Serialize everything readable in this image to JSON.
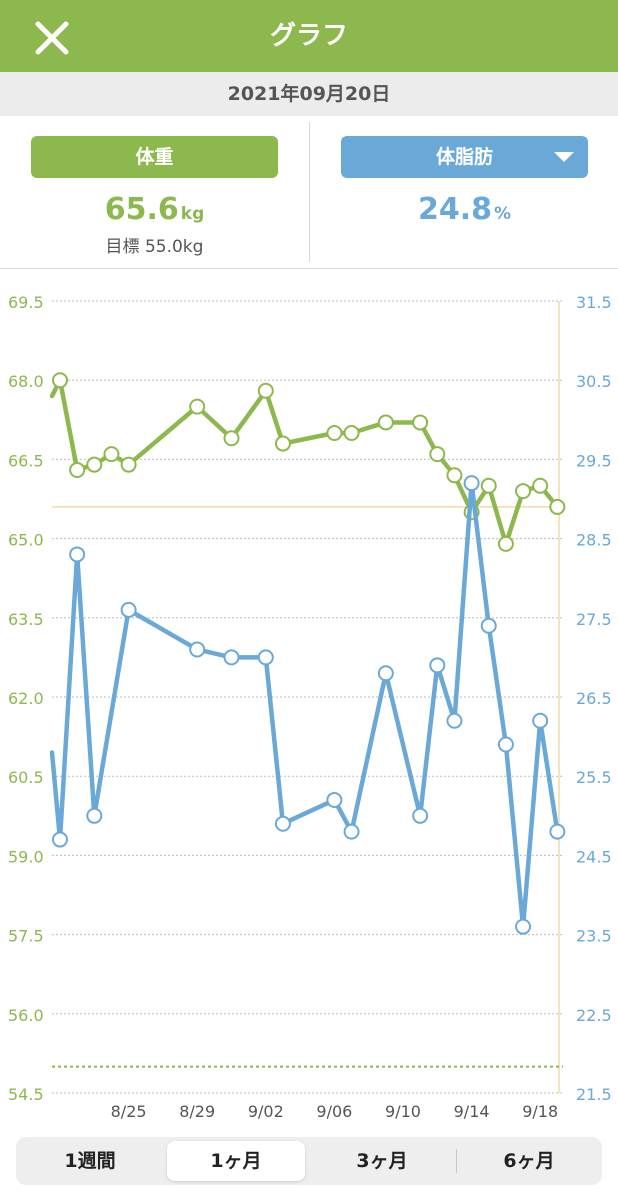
{
  "header": {
    "title": "グラフ"
  },
  "date": "2021年09月20日",
  "weight": {
    "label": "体重",
    "value": "65.6",
    "unit": "kg",
    "goal": "目標 55.0kg"
  },
  "body_fat": {
    "label": "体脂肪",
    "value": "24.8",
    "unit": "%"
  },
  "colors": {
    "green": "#8db84e",
    "blue": "#6aa8d8",
    "marker": "#f2d9a8"
  },
  "tabs": [
    {
      "label": "1週間",
      "active": false
    },
    {
      "label": "1ヶ月",
      "active": true
    },
    {
      "label": "3ヶ月",
      "active": false
    },
    {
      "label": "6ヶ月",
      "active": false
    }
  ],
  "chart_data": {
    "type": "line",
    "x_start": "2021-08-21",
    "x_end": "2021-09-20",
    "x_ticks": [
      "8/25",
      "8/29",
      "9/02",
      "9/06",
      "9/10",
      "9/14",
      "9/18"
    ],
    "y_left": {
      "ticks": [
        "69.5",
        "68.0",
        "66.5",
        "65.0",
        "63.5",
        "62.0",
        "60.5",
        "59.0",
        "57.5",
        "56.0",
        "54.5"
      ],
      "min": 54.5,
      "max": 69.5
    },
    "y_right": {
      "ticks": [
        "31.5",
        "30.5",
        "29.5",
        "28.5",
        "27.5",
        "26.5",
        "25.5",
        "24.5",
        "23.5",
        "22.5",
        "21.5"
      ],
      "min": 21.5,
      "max": 31.5
    },
    "reference_lines": [
      {
        "series": "weight",
        "value": 65.6
      },
      {
        "series": "weight",
        "value": 55.0,
        "style": "dotted"
      }
    ],
    "series": [
      {
        "key": "weight",
        "axis": "left",
        "points": [
          [
            "2021-08-21",
            68.0
          ],
          [
            "2021-08-22",
            66.3
          ],
          [
            "2021-08-23",
            66.4
          ],
          [
            "2021-08-24",
            66.6
          ],
          [
            "2021-08-25",
            66.4
          ],
          [
            "2021-08-29",
            67.5
          ],
          [
            "2021-08-31",
            66.9
          ],
          [
            "2021-09-02",
            67.8
          ],
          [
            "2021-09-03",
            66.8
          ],
          [
            "2021-09-06",
            67.0
          ],
          [
            "2021-09-07",
            67.0
          ],
          [
            "2021-09-09",
            67.2
          ],
          [
            "2021-09-11",
            67.2
          ],
          [
            "2021-09-12",
            66.6
          ],
          [
            "2021-09-13",
            66.2
          ],
          [
            "2021-09-14",
            65.5
          ],
          [
            "2021-09-15",
            66.0
          ],
          [
            "2021-09-16",
            64.9
          ],
          [
            "2021-09-17",
            65.9
          ],
          [
            "2021-09-18",
            66.0
          ],
          [
            "2021-09-19",
            65.6
          ]
        ]
      },
      {
        "key": "body_fat",
        "axis": "right",
        "points": [
          [
            "2021-08-21",
            24.7
          ],
          [
            "2021-08-22",
            28.3
          ],
          [
            "2021-08-23",
            25.0
          ],
          [
            "2021-08-25",
            27.6
          ],
          [
            "2021-08-29",
            27.1
          ],
          [
            "2021-08-31",
            27.0
          ],
          [
            "2021-09-02",
            27.0
          ],
          [
            "2021-09-03",
            24.9
          ],
          [
            "2021-09-06",
            25.2
          ],
          [
            "2021-09-07",
            24.8
          ],
          [
            "2021-09-09",
            26.8
          ],
          [
            "2021-09-11",
            25.0
          ],
          [
            "2021-09-12",
            26.9
          ],
          [
            "2021-09-13",
            26.2
          ],
          [
            "2021-09-14",
            29.2
          ],
          [
            "2021-09-15",
            27.4
          ],
          [
            "2021-09-16",
            25.9
          ],
          [
            "2021-09-17",
            23.6
          ],
          [
            "2021-09-18",
            26.2
          ],
          [
            "2021-09-19",
            24.8
          ]
        ]
      }
    ]
  }
}
